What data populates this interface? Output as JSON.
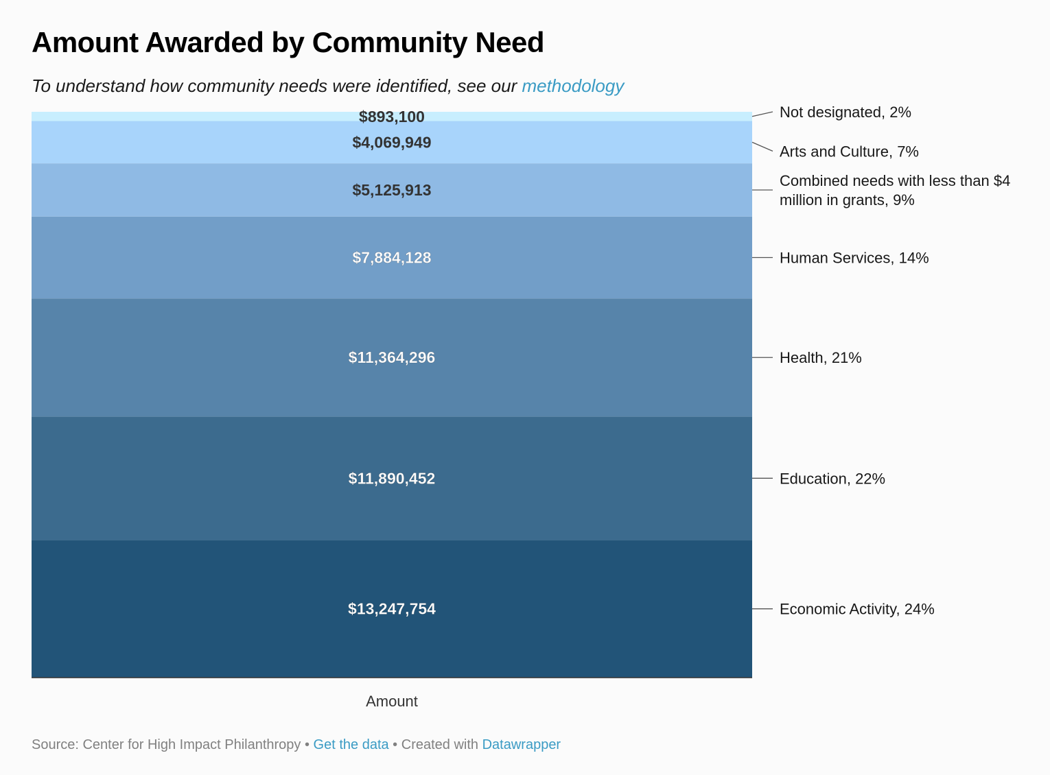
{
  "header": {
    "title": "Amount Awarded by Community Need",
    "subtitle_text": "To understand how community needs were identified, see our ",
    "subtitle_link": "methodology"
  },
  "footer": {
    "source": "Source: Center for High Impact Philanthropy",
    "separator": " • ",
    "get_data": "Get the data",
    "created_with": "Created with ",
    "datawrapper": "Datawrapper"
  },
  "chart_data": {
    "type": "bar",
    "subtype": "stacked-100",
    "categories": [
      "Amount"
    ],
    "xlabel": "Amount",
    "ylim": [
      0,
      100
    ],
    "grid": false,
    "series": [
      {
        "name": "Economic Activity",
        "value": 13247754,
        "value_label": "$13,247,754",
        "legend_label": "Economic Activity, 24%",
        "color": "#225478",
        "label_color": "#ffffff"
      },
      {
        "name": "Education",
        "value": 11890452,
        "value_label": "$11,890,452",
        "legend_label": "Education, 22%",
        "color": "#3c6b8e",
        "label_color": "#ffffff"
      },
      {
        "name": "Health",
        "value": 11364296,
        "value_label": "$11,364,296",
        "legend_label": "Health, 21%",
        "color": "#5784aa",
        "label_color": "#ffffff"
      },
      {
        "name": "Human Services",
        "value": 7884128,
        "value_label": "$7,884,128",
        "legend_label": "Human Services, 14%",
        "color": "#729ec8",
        "label_color": "#ffffff"
      },
      {
        "name": "Combined needs with less than $4 million in grants",
        "value": 5125913,
        "value_label": "$5,125,913",
        "legend_label": [
          "Combined needs with less than $4",
          "million in grants, 9%"
        ],
        "color": "#8fbae4",
        "label_color": "#333333"
      },
      {
        "name": "Arts and Culture",
        "value": 4069949,
        "value_label": "$4,069,949",
        "legend_label": "Arts and Culture, 7%",
        "color": "#a8d4fb",
        "label_color": "#333333"
      },
      {
        "name": "Not designated",
        "value": 893100,
        "value_label": "$893,100",
        "legend_label": "Not designated, 2%",
        "color": "#c8eefe",
        "label_color": "#333333"
      }
    ]
  }
}
